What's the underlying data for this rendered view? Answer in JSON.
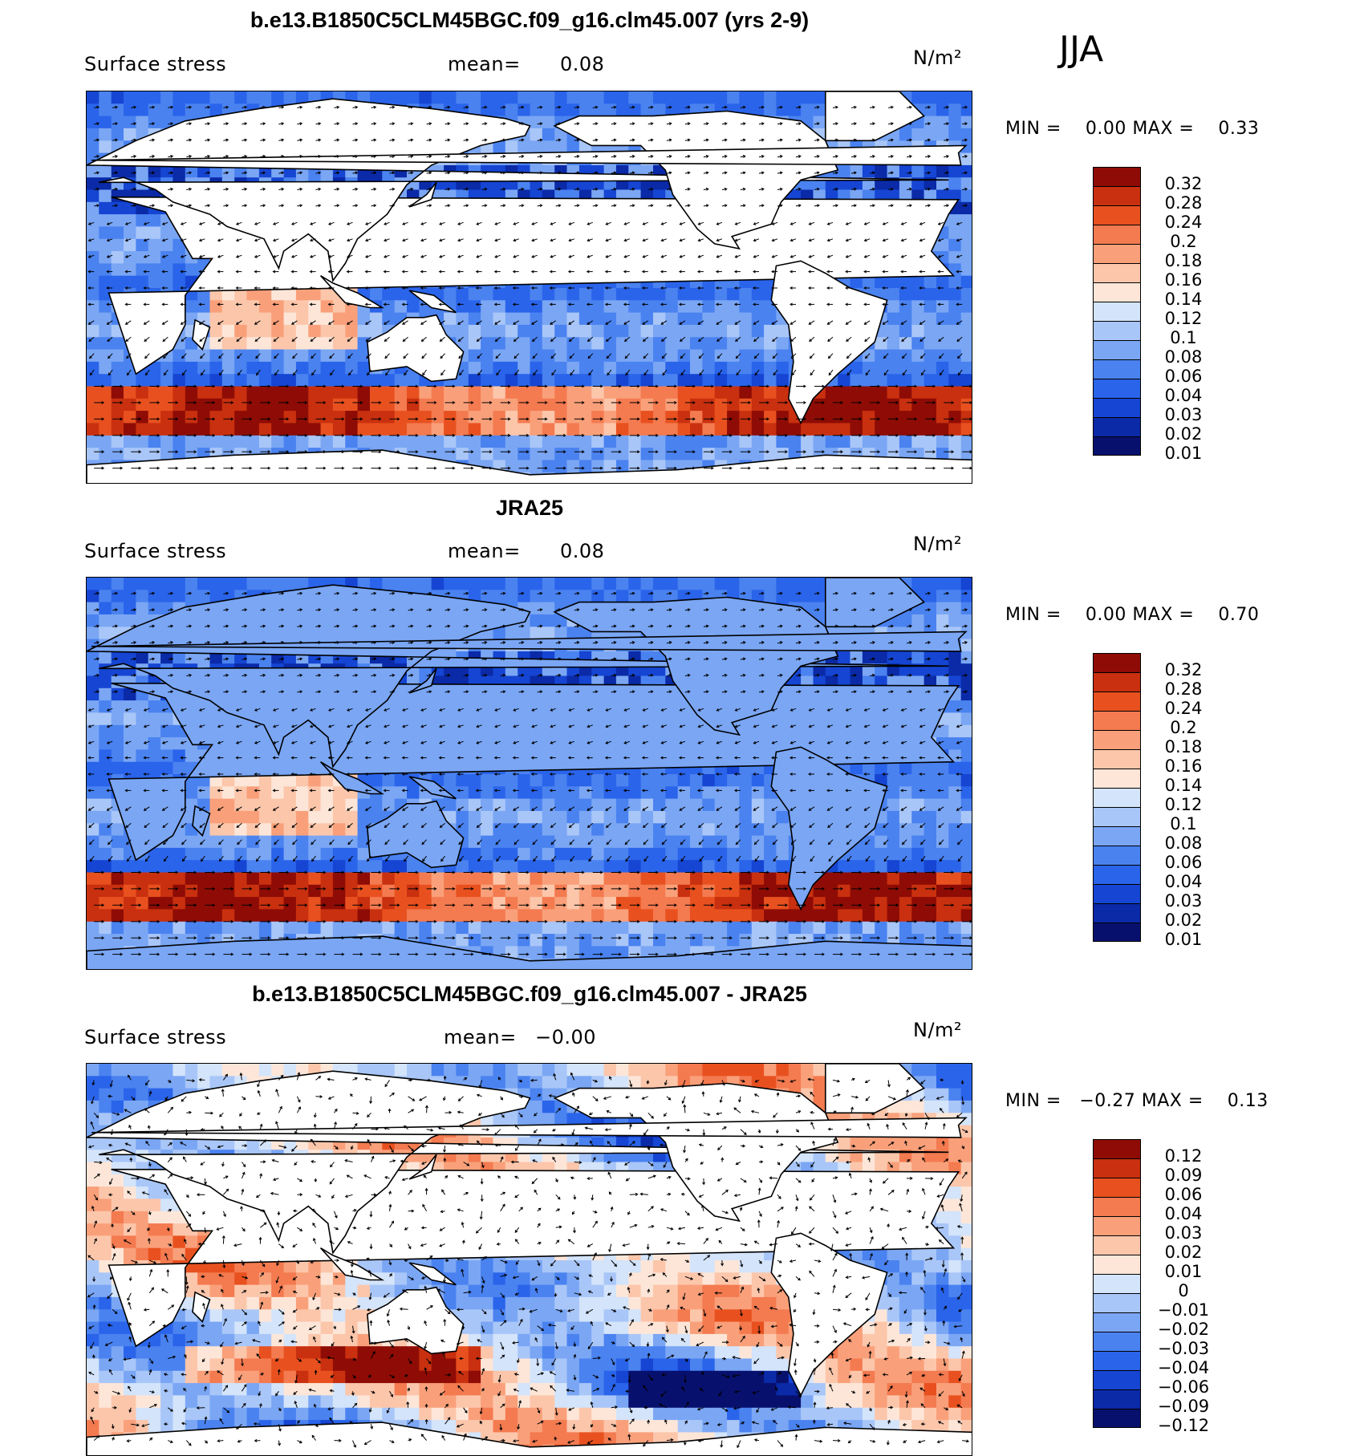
{
  "season": "JJA",
  "colors": {
    "scale": [
      "#08106e",
      "#0a2aa8",
      "#1545d2",
      "#2a64ea",
      "#4a82f0",
      "#7aa6f4",
      "#a9c6f8",
      "#d3e4fb",
      "#fde6d8",
      "#fcc6ab",
      "#f9a07a",
      "#f47a50",
      "#e8511f",
      "#c9300f",
      "#8e0c05"
    ],
    "land": "#ffffff",
    "coast": "#000000"
  },
  "panels": [
    {
      "title": "b.e13.B1850C5CLM45BGC.f09_g16.clm45.007 (yrs 2-9)",
      "variable": "Surface stress",
      "mean_label": "mean=",
      "mean_value": "0.08",
      "units": "N/m²",
      "min_label": "MIN =",
      "min_value": "0.00",
      "max_label": "MAX =",
      "max_value": "0.33",
      "colorbar_labels": [
        "0.32",
        "0.28",
        "0.24",
        "0.2",
        "0.18",
        "0.16",
        "0.14",
        "0.12",
        "0.1",
        "0.08",
        "0.06",
        "0.04",
        "0.03",
        "0.02",
        "0.01"
      ]
    },
    {
      "title": "JRA25",
      "variable": "Surface stress",
      "mean_label": "mean=",
      "mean_value": "0.08",
      "units": "N/m²",
      "min_label": "MIN =",
      "min_value": "0.00",
      "max_label": "MAX =",
      "max_value": "0.70",
      "colorbar_labels": [
        "0.32",
        "0.28",
        "0.24",
        "0.2",
        "0.18",
        "0.16",
        "0.14",
        "0.12",
        "0.1",
        "0.08",
        "0.06",
        "0.04",
        "0.03",
        "0.02",
        "0.01"
      ]
    },
    {
      "title": "b.e13.B1850C5CLM45BGC.f09_g16.clm45.007 - JRA25",
      "variable": "Surface stress",
      "mean_label": "mean=",
      "mean_value": "−0.00",
      "units": "N/m²",
      "min_label": "MIN =",
      "min_value": "−0.27",
      "max_label": "MAX =",
      "max_value": "0.13",
      "colorbar_labels": [
        "0.12",
        "0.09",
        "0.06",
        "0.04",
        "0.03",
        "0.02",
        "0.01",
        "0",
        "−0.01",
        "−0.02",
        "−0.03",
        "−0.04",
        "−0.06",
        "−0.09",
        "−0.12"
      ]
    }
  ]
}
